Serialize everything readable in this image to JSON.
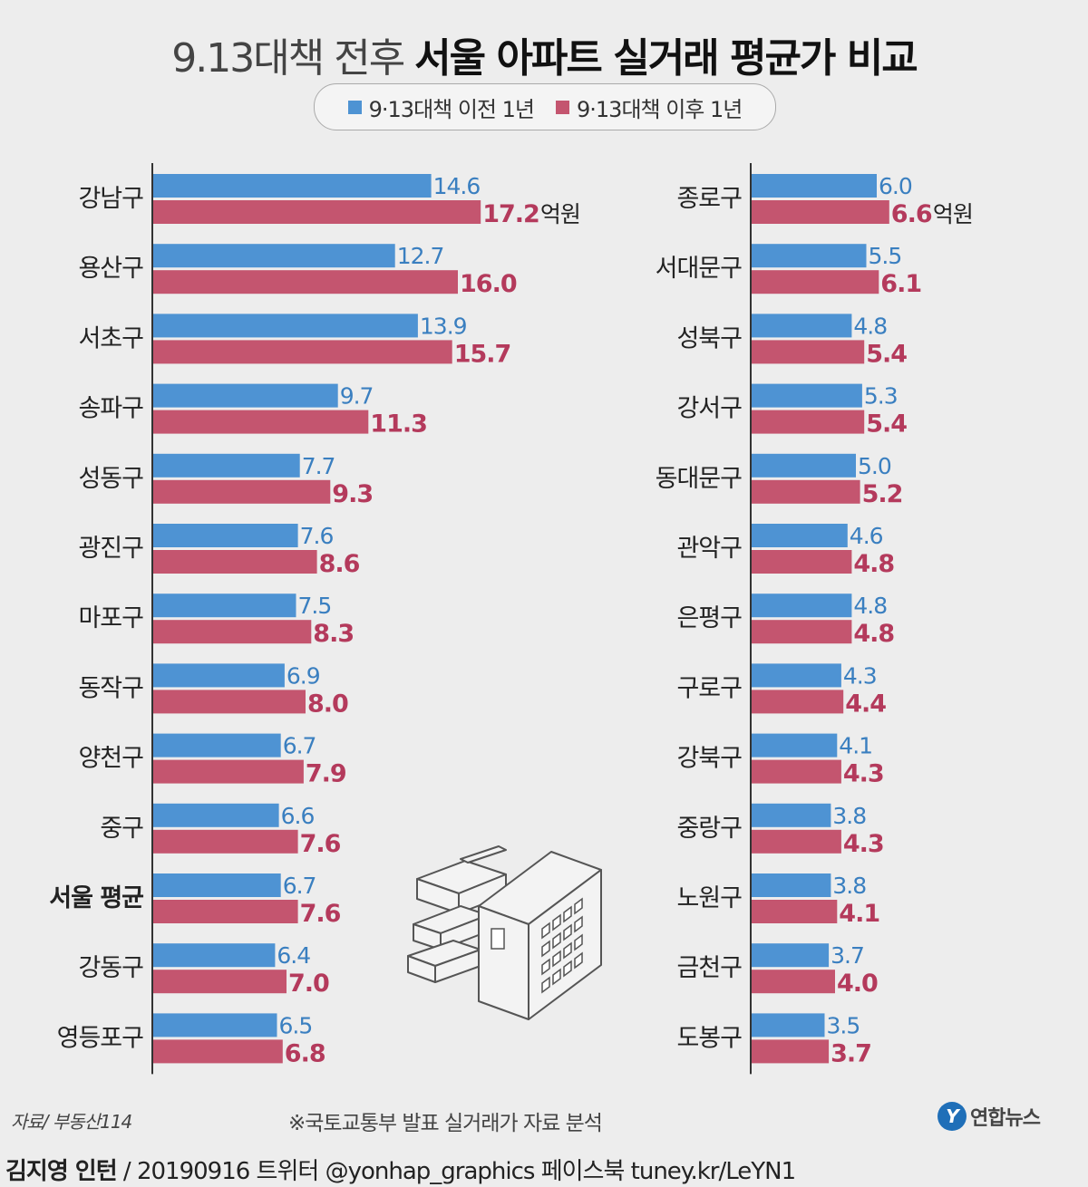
{
  "title": {
    "light": "9.13대책 전후",
    "bold": "서울 아파트 실거래 평균가 비교"
  },
  "legend": [
    {
      "label": "9·13대책 이전 1년",
      "color": "#4e93d3"
    },
    {
      "label": "9·13대책 이후 1년",
      "color": "#c4556f"
    }
  ],
  "colors": {
    "before": "#4e93d3",
    "after": "#c4556f",
    "before_text": "#3a7fc0",
    "after_text": "#b43a5c",
    "axis": "#333333"
  },
  "unit": "억원",
  "chart_data": [
    {
      "type": "bar",
      "orientation": "horizontal",
      "series_names": [
        "9·13대책 이전 1년",
        "9·13대책 이후 1년"
      ],
      "categories": [
        "강남구",
        "용산구",
        "서초구",
        "송파구",
        "성동구",
        "광진구",
        "마포구",
        "동작구",
        "양천구",
        "중구",
        "서울 평균",
        "강동구",
        "영등포구"
      ],
      "highlight": "서울 평균",
      "series": [
        {
          "name": "9·13대책 이전 1년",
          "values": [
            14.6,
            12.7,
            13.9,
            9.7,
            7.7,
            7.6,
            7.5,
            6.9,
            6.7,
            6.6,
            6.7,
            6.4,
            6.5
          ]
        },
        {
          "name": "9·13대책 이후 1년",
          "values": [
            17.2,
            16.0,
            15.7,
            11.3,
            9.3,
            8.6,
            8.3,
            8.0,
            7.9,
            7.6,
            7.6,
            7.0,
            6.8
          ]
        }
      ],
      "labels_before": [
        "14.6",
        "12.7",
        "13.9",
        "9.7",
        "7.7",
        "7.6",
        "7.5",
        "6.9",
        "6.7",
        "6.6",
        "6.7",
        "6.4",
        "6.5"
      ],
      "labels_after": [
        "17.2",
        "16.0",
        "15.7",
        "11.3",
        "9.3",
        "8.6",
        "8.3",
        "8.0",
        "7.9",
        "7.6",
        "7.6",
        "7.0",
        "6.8"
      ],
      "unit_label": "억원"
    },
    {
      "type": "bar",
      "orientation": "horizontal",
      "series_names": [
        "9·13대책 이전 1년",
        "9·13대책 이후 1년"
      ],
      "categories": [
        "종로구",
        "서대문구",
        "성북구",
        "강서구",
        "동대문구",
        "관악구",
        "은평구",
        "구로구",
        "강북구",
        "중랑구",
        "노원구",
        "금천구",
        "도봉구"
      ],
      "series": [
        {
          "name": "9·13대책 이전 1년",
          "values": [
            6.0,
            5.5,
            4.8,
            5.3,
            5.0,
            4.6,
            4.8,
            4.3,
            4.1,
            3.8,
            3.8,
            3.7,
            3.5
          ]
        },
        {
          "name": "9·13대책 이후 1년",
          "values": [
            6.6,
            6.1,
            5.4,
            5.4,
            5.2,
            4.8,
            4.8,
            4.4,
            4.3,
            4.3,
            4.1,
            4.0,
            3.7
          ]
        }
      ],
      "labels_before": [
        "6.0",
        "5.5",
        "4.8",
        "5.3",
        "5.0",
        "4.6",
        "4.8",
        "4.3",
        "4.1",
        "3.8",
        "3.8",
        "3.7",
        "3.5"
      ],
      "labels_after": [
        "6.6",
        "6.1",
        "5.4",
        "5.4",
        "5.2",
        "4.8",
        "4.8",
        "4.4",
        "4.3",
        "4.3",
        "4.1",
        "4.0",
        "3.7"
      ],
      "unit_label": "억원"
    }
  ],
  "footer": {
    "source": "자료/ 부동산114",
    "note": "※국토교통부 발표 실거래가 자료 분석",
    "logo": "연합뉴스",
    "logo_mark": "Y",
    "author": "김지영 인턴",
    "credit": " / 20190916  트위터 @yonhap_graphics  페이스북 tuney.kr/LeYN1"
  }
}
